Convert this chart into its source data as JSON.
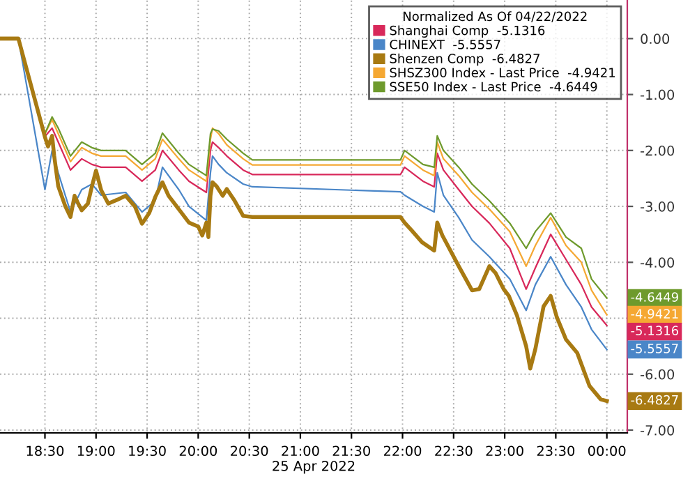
{
  "chart_data": {
    "type": "line",
    "xlabel": "25 Apr 2022",
    "legend_title": "Normalized As Of 04/22/2022",
    "legend": "top right",
    "grid": true,
    "xlim": [
      18.06,
      24.2
    ],
    "xticks": [
      {
        "value": 18.5,
        "label": "18:30"
      },
      {
        "value": 19,
        "label": "19:00"
      },
      {
        "value": 19.5,
        "label": "19:30"
      },
      {
        "value": 20,
        "label": "20:00"
      },
      {
        "value": 20.5,
        "label": "20:30"
      },
      {
        "value": 21,
        "label": "21:00"
      },
      {
        "value": 21.5,
        "label": "21:30"
      },
      {
        "value": 22,
        "label": "22:00"
      },
      {
        "value": 22.5,
        "label": "22:30"
      },
      {
        "value": 23,
        "label": "23:00"
      },
      {
        "value": 23.5,
        "label": "23:30"
      },
      {
        "value": 24,
        "label": "00:00"
      }
    ],
    "ylim": [
      -7.05,
      0.69
    ],
    "yticks": [
      {
        "value": 0,
        "label": "0.00"
      },
      {
        "value": -1,
        "label": "-1.00"
      },
      {
        "value": -2,
        "label": "-2.00"
      },
      {
        "value": -3,
        "label": "-3.00"
      },
      {
        "value": -4,
        "label": "-4.00"
      },
      {
        "value": -5,
        "label": null
      },
      {
        "value": -6,
        "label": "-6.00"
      },
      {
        "value": -7,
        "label": "-7.00"
      }
    ],
    "series": [
      {
        "name": "Shanghai Comp  -5.1316",
        "color": "#d8285a",
        "x": [
          18.06,
          18.24,
          18.5,
          18.57,
          18.63,
          18.75,
          18.86,
          18.96,
          19.05,
          19.29,
          19.45,
          19.58,
          19.65,
          19.81,
          19.91,
          20.08,
          20.12,
          20.14,
          20.2,
          20.28,
          20.44,
          20.53,
          21.98,
          22.02,
          22.2,
          22.31,
          22.34,
          22.4,
          22.55,
          22.68,
          22.85,
          23.05,
          23.21,
          23.3,
          23.45,
          23.6,
          23.75,
          23.85,
          24.0
        ],
        "values": [
          0,
          0,
          -1.75,
          -1.6,
          -1.85,
          -2.35,
          -2.15,
          -2.25,
          -2.3,
          -2.3,
          -2.55,
          -2.35,
          -2.0,
          -2.35,
          -2.55,
          -2.75,
          -2.0,
          -1.85,
          -1.95,
          -2.1,
          -2.35,
          -2.43,
          -2.43,
          -2.3,
          -2.55,
          -2.65,
          -2.05,
          -2.35,
          -2.7,
          -3.0,
          -3.3,
          -3.75,
          -4.48,
          -4.1,
          -3.5,
          -3.95,
          -4.4,
          -4.8,
          -5.13
        ]
      },
      {
        "name": "CHINEXT  -5.5557",
        "color": "#4a86c8",
        "x": [
          18.06,
          18.24,
          18.5,
          18.57,
          18.63,
          18.75,
          18.86,
          18.96,
          19.05,
          19.29,
          19.45,
          19.58,
          19.65,
          19.81,
          19.91,
          20.08,
          20.12,
          20.14,
          20.2,
          20.28,
          20.44,
          20.53,
          21.98,
          22.02,
          22.2,
          22.31,
          22.34,
          22.4,
          22.55,
          22.68,
          22.85,
          23.05,
          23.21,
          23.3,
          23.45,
          23.6,
          23.75,
          23.85,
          24.0
        ],
        "values": [
          0,
          0,
          -2.7,
          -2.0,
          -2.4,
          -3.1,
          -2.7,
          -2.6,
          -2.8,
          -2.75,
          -3.1,
          -2.9,
          -2.3,
          -2.7,
          -3.0,
          -3.25,
          -2.4,
          -2.1,
          -2.25,
          -2.4,
          -2.6,
          -2.65,
          -2.74,
          -2.8,
          -3.0,
          -3.1,
          -2.4,
          -2.8,
          -3.2,
          -3.6,
          -3.9,
          -4.3,
          -4.86,
          -4.4,
          -3.9,
          -4.4,
          -4.8,
          -5.2,
          -5.56
        ]
      },
      {
        "name": "Shenzen Comp  -6.4827",
        "color": "#a87a12",
        "x": [
          18.06,
          18.24,
          18.5,
          18.53,
          18.57,
          18.59,
          18.63,
          18.7,
          18.75,
          18.79,
          18.82,
          18.86,
          18.92,
          18.96,
          19.0,
          19.05,
          19.12,
          19.21,
          19.29,
          19.38,
          19.45,
          19.52,
          19.58,
          19.65,
          19.71,
          19.81,
          19.91,
          20.0,
          20.04,
          20.08,
          20.1,
          20.12,
          20.14,
          20.18,
          20.24,
          20.28,
          20.35,
          20.44,
          20.53,
          21.98,
          22.02,
          22.09,
          22.19,
          22.31,
          22.34,
          22.39,
          22.55,
          22.68,
          22.75,
          22.85,
          22.91,
          22.99,
          23.04,
          23.12,
          23.21,
          23.25,
          23.3,
          23.38,
          23.45,
          23.51,
          23.6,
          23.71,
          23.83,
          23.94,
          24.0
        ],
        "values": [
          0,
          0,
          -1.76,
          -1.93,
          -1.74,
          -2.09,
          -2.64,
          -3.0,
          -3.19,
          -2.81,
          -2.93,
          -3.07,
          -2.95,
          -2.64,
          -2.36,
          -2.71,
          -2.95,
          -2.88,
          -2.81,
          -3.0,
          -3.31,
          -3.12,
          -2.83,
          -2.57,
          -2.81,
          -3.05,
          -3.29,
          -3.36,
          -3.52,
          -3.29,
          -3.55,
          -2.81,
          -2.57,
          -2.64,
          -2.81,
          -2.69,
          -2.88,
          -3.17,
          -3.19,
          -3.19,
          -3.29,
          -3.43,
          -3.64,
          -3.79,
          -3.29,
          -3.52,
          -4.07,
          -4.5,
          -4.48,
          -4.07,
          -4.19,
          -4.48,
          -4.6,
          -4.95,
          -5.5,
          -5.9,
          -5.55,
          -4.79,
          -4.6,
          -4.98,
          -5.38,
          -5.62,
          -6.21,
          -6.45,
          -6.48
        ]
      },
      {
        "name": "SHSZ300 Index - Last Price  -4.9421",
        "color": "#f5a833",
        "x": [
          18.06,
          18.24,
          18.5,
          18.57,
          18.63,
          18.75,
          18.86,
          18.96,
          19.05,
          19.29,
          19.45,
          19.58,
          19.65,
          19.81,
          19.91,
          20.08,
          20.12,
          20.14,
          20.2,
          20.28,
          20.44,
          20.53,
          21.98,
          22.02,
          22.2,
          22.31,
          22.34,
          22.4,
          22.55,
          22.68,
          22.85,
          23.05,
          23.21,
          23.3,
          23.45,
          23.6,
          23.75,
          23.85,
          24.0
        ],
        "values": [
          0,
          0,
          -1.7,
          -1.45,
          -1.7,
          -2.2,
          -1.95,
          -2.05,
          -2.1,
          -2.1,
          -2.35,
          -2.15,
          -1.8,
          -2.15,
          -2.35,
          -2.55,
          -1.8,
          -1.6,
          -1.7,
          -1.9,
          -2.15,
          -2.26,
          -2.26,
          -2.1,
          -2.35,
          -2.45,
          -1.85,
          -2.15,
          -2.45,
          -2.75,
          -3.05,
          -3.45,
          -4.07,
          -3.7,
          -3.2,
          -3.7,
          -4.0,
          -4.5,
          -4.94
        ]
      },
      {
        "name": "SSE50 Index - Last Price  -4.6449",
        "color": "#6e9a2c",
        "x": [
          18.06,
          18.24,
          18.5,
          18.57,
          18.63,
          18.75,
          18.86,
          18.96,
          19.05,
          19.29,
          19.45,
          19.58,
          19.65,
          19.81,
          19.91,
          20.08,
          20.12,
          20.14,
          20.2,
          20.28,
          20.44,
          20.53,
          21.98,
          22.02,
          22.2,
          22.31,
          22.34,
          22.4,
          22.55,
          22.68,
          22.85,
          23.05,
          23.21,
          23.3,
          23.45,
          23.6,
          23.75,
          23.85,
          24.0
        ],
        "values": [
          0,
          0,
          -1.7,
          -1.4,
          -1.6,
          -2.1,
          -1.85,
          -1.95,
          -2.0,
          -2.0,
          -2.25,
          -2.05,
          -1.69,
          -2.05,
          -2.25,
          -2.45,
          -1.7,
          -1.62,
          -1.65,
          -1.8,
          -2.05,
          -2.17,
          -2.17,
          -2.0,
          -2.25,
          -2.3,
          -1.74,
          -2.0,
          -2.3,
          -2.6,
          -2.9,
          -3.3,
          -3.75,
          -3.45,
          -3.12,
          -3.55,
          -3.75,
          -4.3,
          -4.64
        ]
      }
    ],
    "annotations": [
      "-5.1316",
      "-5.5557",
      "-6.4827",
      "-4.9421",
      "-4.6449"
    ]
  }
}
